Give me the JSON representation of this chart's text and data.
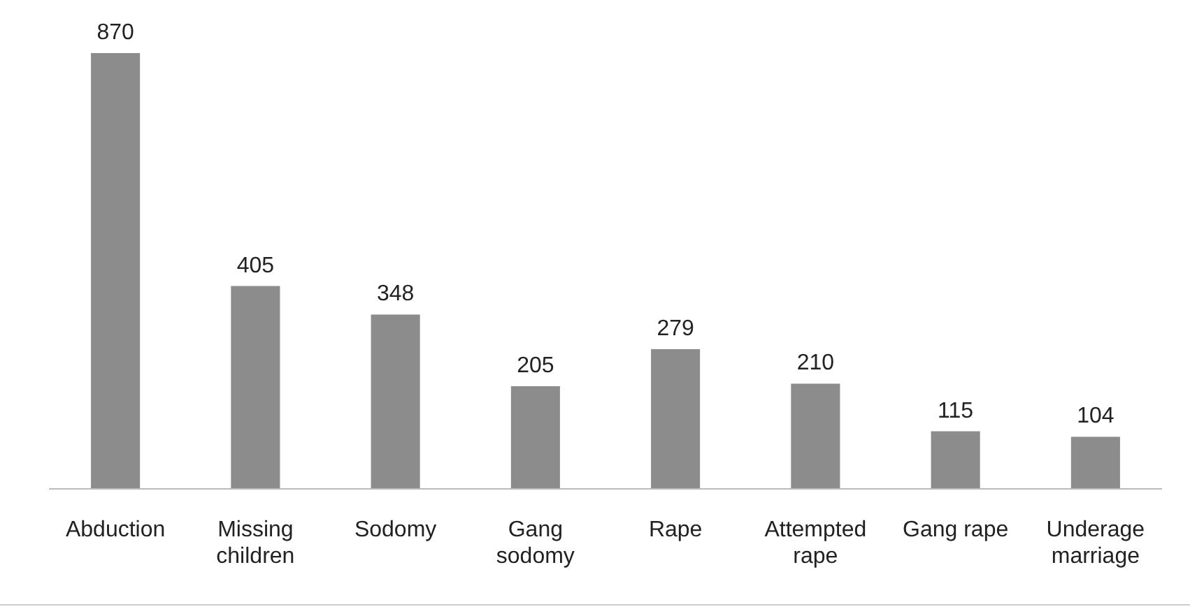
{
  "chart_data": {
    "type": "bar",
    "categories": [
      "Abduction",
      "Missing children",
      "Sodomy",
      "Gang sodomy",
      "Rape",
      "Attempted rape",
      "Gang rape",
      "Underage marriage"
    ],
    "values": [
      870,
      405,
      348,
      205,
      279,
      210,
      115,
      104
    ],
    "color": "#8c8c8c",
    "data_labels": true
  }
}
